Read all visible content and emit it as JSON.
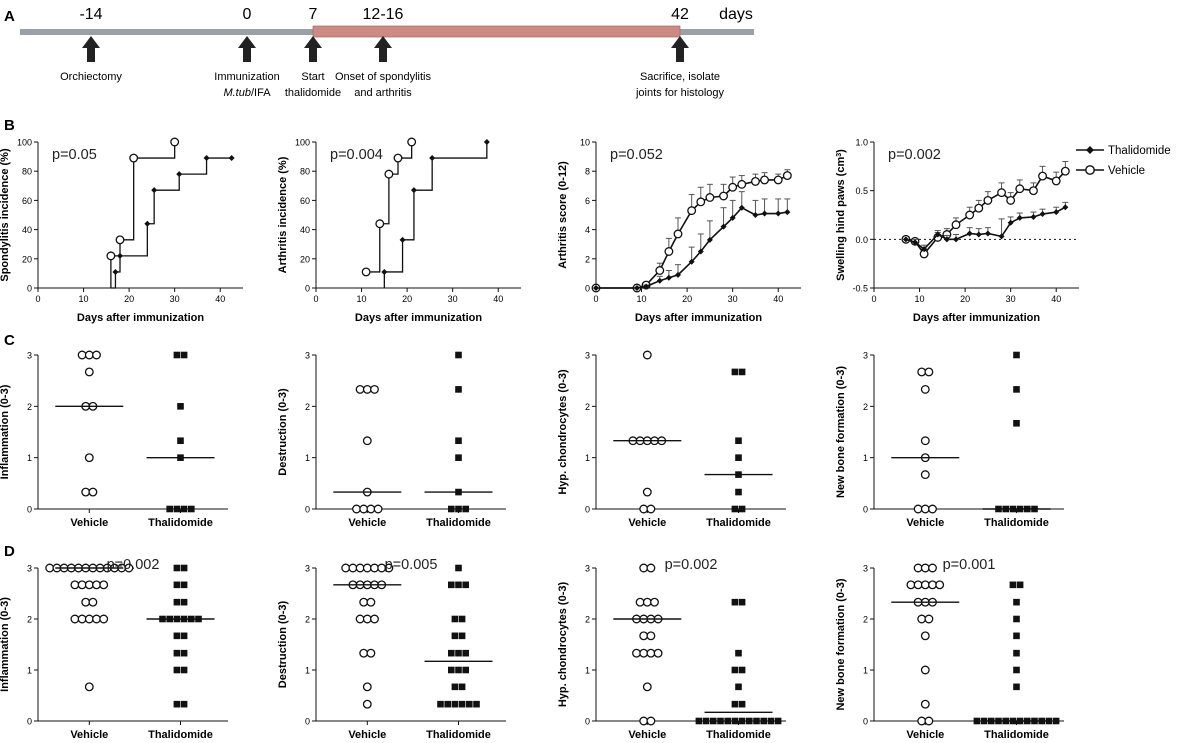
{
  "timeline": {
    "panel_label": "A",
    "unit": "days",
    "ticks": [
      {
        "label": "-14",
        "event": [
          "Orchiectomy"
        ]
      },
      {
        "label": "0",
        "event": [
          "Immunization",
          "M.tub/IFA"
        ]
      },
      {
        "label": "7",
        "event": [
          "Start",
          "thalidomide"
        ]
      },
      {
        "label": "12-16",
        "event": [
          "Onset of spondylitis",
          "and arthritis"
        ]
      },
      {
        "label": "42",
        "event": [
          "Sacrifice, isolate",
          "joints for histology"
        ]
      }
    ],
    "treatment_from": "7",
    "treatment_to": "42",
    "colors": {
      "axis": "#9aa0a8",
      "treatment": "#cc8a84",
      "arrow": "#222222"
    }
  },
  "legend": {
    "items": [
      {
        "series": "Thalidomide",
        "marker": "filled-diamond"
      },
      {
        "series": "Vehicle",
        "marker": "open-circle"
      }
    ]
  },
  "chart_data": [
    {
      "panel": "B",
      "type": "step",
      "title": "",
      "pvalue": "p=0.05",
      "xlabel": "Days after immunization",
      "ylabel": "Spondylitis incidence (%)",
      "xlim": [
        0,
        45
      ],
      "ylim": [
        0,
        100
      ],
      "xticks": [
        0,
        10,
        20,
        30,
        40
      ],
      "yticks": [
        0,
        20,
        40,
        60,
        80,
        100
      ],
      "series": [
        {
          "name": "Vehicle",
          "marker": "circle",
          "points": [
            [
              16,
              0
            ],
            [
              16,
              22
            ],
            [
              18,
              33
            ],
            [
              21,
              89
            ],
            [
              30,
              100
            ]
          ]
        },
        {
          "name": "Thalidomide",
          "marker": "diamond",
          "points": [
            [
              16,
              0
            ],
            [
              17,
              11
            ],
            [
              18,
              22
            ],
            [
              24,
              44
            ],
            [
              25.5,
              67
            ],
            [
              31,
              78
            ],
            [
              37,
              89
            ],
            [
              42.5,
              89
            ]
          ]
        }
      ]
    },
    {
      "panel": "B",
      "type": "step",
      "title": "",
      "pvalue": "p=0.004",
      "xlabel": "Days after immunization",
      "ylabel": "Arthritis incidence (%)",
      "xlim": [
        0,
        45
      ],
      "ylim": [
        0,
        100
      ],
      "xticks": [
        0,
        10,
        20,
        30,
        40
      ],
      "yticks": [
        0,
        20,
        40,
        60,
        80,
        100
      ],
      "series": [
        {
          "name": "Vehicle",
          "marker": "circle",
          "points": [
            [
              11,
              11
            ],
            [
              14,
              44
            ],
            [
              16,
              78
            ],
            [
              18,
              89
            ],
            [
              21,
              100
            ]
          ]
        },
        {
          "name": "Thalidomide",
          "marker": "diamond",
          "points": [
            [
              15,
              0
            ],
            [
              15,
              11
            ],
            [
              19,
              33
            ],
            [
              21.5,
              67
            ],
            [
              25.5,
              89
            ],
            [
              37.5,
              100
            ]
          ]
        }
      ]
    },
    {
      "panel": "B",
      "type": "line",
      "title": "",
      "pvalue": "p=0.052",
      "xlabel": "Days after immunization",
      "ylabel": "Arthritis score (0-12)",
      "xlim": [
        0,
        45
      ],
      "ylim": [
        0,
        10
      ],
      "xticks": [
        0,
        10,
        20,
        30,
        40
      ],
      "yticks": [
        0,
        2,
        4,
        6,
        8,
        10
      ],
      "series": [
        {
          "name": "Vehicle",
          "marker": "circle",
          "x": [
            0,
            9,
            11,
            14,
            16,
            18,
            21,
            23,
            25,
            28,
            30,
            32,
            35,
            37,
            40,
            42
          ],
          "y": [
            0,
            0,
            0.2,
            1.2,
            2.5,
            3.7,
            5.3,
            5.9,
            6.2,
            6.3,
            6.9,
            7.1,
            7.3,
            7.4,
            7.4,
            7.7
          ],
          "err": [
            0,
            0,
            0.2,
            0.5,
            0.9,
            1.1,
            1.1,
            1.0,
            0.9,
            0.8,
            0.7,
            0.6,
            0.5,
            0.5,
            0.4,
            0.4
          ]
        },
        {
          "name": "Thalidomide",
          "marker": "diamond",
          "x": [
            0,
            9,
            11,
            14,
            16,
            18,
            21,
            23,
            25,
            28,
            30,
            32,
            35,
            37,
            40,
            42
          ],
          "y": [
            0,
            0,
            0.1,
            0.5,
            0.7,
            0.9,
            1.8,
            2.5,
            3.3,
            4.2,
            4.8,
            5.5,
            5.0,
            5.1,
            5.1,
            5.2
          ],
          "err": [
            0,
            0,
            0.1,
            0.3,
            0.5,
            0.7,
            1.0,
            1.2,
            1.3,
            1.3,
            1.2,
            1.1,
            1.0,
            1.0,
            1.0,
            0.9
          ]
        }
      ]
    },
    {
      "panel": "B",
      "type": "line",
      "title": "",
      "pvalue": "p=0.002",
      "xlabel": "Days after immunization",
      "ylabel": "Swelling hind paws (cm³)",
      "xlim": [
        0,
        45
      ],
      "ylim": [
        -0.5,
        1.0
      ],
      "xticks": [
        0,
        10,
        20,
        30,
        40
      ],
      "yticks": [
        -0.5,
        0.0,
        0.5,
        1.0
      ],
      "reference_line": 0,
      "series": [
        {
          "name": "Vehicle",
          "marker": "circle",
          "x": [
            7,
            9,
            11,
            14,
            16,
            18,
            21,
            23,
            25,
            28,
            30,
            32,
            35,
            37,
            40,
            42
          ],
          "y": [
            0,
            -0.02,
            -0.15,
            0.02,
            0.05,
            0.15,
            0.25,
            0.32,
            0.4,
            0.48,
            0.4,
            0.52,
            0.5,
            0.65,
            0.6,
            0.7
          ],
          "err": [
            0,
            0.03,
            0.05,
            0.05,
            0.06,
            0.07,
            0.08,
            0.08,
            0.09,
            0.1,
            0.08,
            0.09,
            0.08,
            0.1,
            0.09,
            0.1
          ]
        },
        {
          "name": "Thalidomide",
          "marker": "diamond",
          "x": [
            7,
            9,
            11,
            14,
            16,
            18,
            21,
            23,
            25,
            28,
            30,
            32,
            35,
            37,
            40,
            42
          ],
          "y": [
            0,
            -0.03,
            -0.1,
            0.05,
            0.0,
            0.0,
            0.06,
            0.05,
            0.06,
            0.03,
            0.17,
            0.22,
            0.23,
            0.26,
            0.28,
            0.33
          ],
          "err": [
            0,
            0.03,
            0.04,
            0.04,
            0.04,
            0.05,
            0.06,
            0.06,
            0.06,
            0.18,
            0.06,
            0.05,
            0.05,
            0.05,
            0.05,
            0.05
          ]
        }
      ]
    },
    {
      "panel": "C",
      "type": "scatter",
      "pvalue": "",
      "ylabel": "Inflammation (0-3)",
      "ylim": [
        0,
        3
      ],
      "yticks": [
        0,
        1,
        2,
        3
      ],
      "categories": [
        "Vehicle",
        "Thalidomide"
      ],
      "groups": [
        {
          "name": "Vehicle",
          "marker": "circle",
          "median": 2,
          "values": [
            3,
            3,
            3,
            2.67,
            2,
            2,
            1,
            0.33,
            0.33
          ]
        },
        {
          "name": "Thalidomide",
          "marker": "square",
          "median": 1,
          "values": [
            3,
            3,
            2,
            1.33,
            1,
            0,
            0,
            0,
            0
          ]
        }
      ]
    },
    {
      "panel": "C",
      "type": "scatter",
      "pvalue": "",
      "ylabel": "Destruction (0-3)",
      "ylim": [
        0,
        3
      ],
      "yticks": [
        0,
        1,
        2,
        3
      ],
      "categories": [
        "Vehicle",
        "Thalidomide"
      ],
      "groups": [
        {
          "name": "Vehicle",
          "marker": "circle",
          "median": 0.33,
          "values": [
            2.33,
            2.33,
            2.33,
            1.33,
            0.33,
            0,
            0,
            0,
            0
          ]
        },
        {
          "name": "Thalidomide",
          "marker": "square",
          "median": 0.33,
          "values": [
            3,
            2.33,
            1.33,
            1,
            0.33,
            0,
            0,
            0
          ]
        }
      ]
    },
    {
      "panel": "C",
      "type": "scatter",
      "pvalue": "",
      "ylabel": "Hyp. chondrocytes (0-3)",
      "ylim": [
        0,
        3
      ],
      "yticks": [
        0,
        1,
        2,
        3
      ],
      "categories": [
        "Vehicle",
        "Thalidomide"
      ],
      "groups": [
        {
          "name": "Vehicle",
          "marker": "circle",
          "median": 1.33,
          "values": [
            3,
            1.33,
            1.33,
            1.33,
            1.33,
            1.33,
            0.33,
            0,
            0
          ]
        },
        {
          "name": "Thalidomide",
          "marker": "square",
          "median": 0.67,
          "values": [
            2.67,
            2.67,
            1.33,
            1,
            0.67,
            0.33,
            0,
            0
          ]
        }
      ]
    },
    {
      "panel": "C",
      "type": "scatter",
      "pvalue": "",
      "ylabel": "New bone formation (0-3)",
      "ylim": [
        0,
        3
      ],
      "yticks": [
        0,
        1,
        2,
        3
      ],
      "categories": [
        "Vehicle",
        "Thalidomide"
      ],
      "groups": [
        {
          "name": "Vehicle",
          "marker": "circle",
          "median": 1,
          "values": [
            2.67,
            2.67,
            2.33,
            1.33,
            1,
            0.67,
            0,
            0,
            0
          ]
        },
        {
          "name": "Thalidomide",
          "marker": "square",
          "median": 0,
          "values": [
            3,
            2.33,
            1.67,
            0,
            0,
            0,
            0,
            0,
            0
          ]
        }
      ]
    },
    {
      "panel": "D",
      "type": "scatter",
      "pvalue": "p=0.002",
      "ylabel": "Inflammation (0-3)",
      "ylim": [
        0,
        3
      ],
      "yticks": [
        0,
        1,
        2,
        3
      ],
      "categories": [
        "Vehicle",
        "Thalidomide"
      ],
      "groups": [
        {
          "name": "Vehicle",
          "marker": "circle",
          "median": 3,
          "values": [
            3,
            3,
            3,
            3,
            3,
            3,
            3,
            3,
            3,
            3,
            3,
            3,
            2.67,
            2.67,
            2.67,
            2.67,
            2.67,
            2.33,
            2.33,
            2,
            2,
            2,
            2,
            2,
            0.67
          ]
        },
        {
          "name": "Thalidomide",
          "marker": "square",
          "median": 2,
          "values": [
            3,
            3,
            2.67,
            2.67,
            2.33,
            2.33,
            2,
            2,
            2,
            2,
            2,
            2,
            1.67,
            1.67,
            1.33,
            1.33,
            1,
            1,
            0.33,
            0.33
          ]
        }
      ]
    },
    {
      "panel": "D",
      "type": "scatter",
      "pvalue": "p=0.005",
      "ylabel": "Destruction (0-3)",
      "ylim": [
        0,
        3
      ],
      "yticks": [
        0,
        1,
        2,
        3
      ],
      "categories": [
        "Vehicle",
        "Thalidomide"
      ],
      "groups": [
        {
          "name": "Vehicle",
          "marker": "circle",
          "median": 2.67,
          "values": [
            3,
            3,
            3,
            3,
            3,
            3,
            3,
            2.67,
            2.67,
            2.67,
            2.67,
            2.67,
            2.33,
            2.33,
            2,
            2,
            2,
            1.33,
            1.33,
            0.67,
            0.33
          ]
        },
        {
          "name": "Thalidomide",
          "marker": "square",
          "median": 1.17,
          "values": [
            3,
            2.67,
            2.67,
            2.67,
            2,
            2,
            1.67,
            1.67,
            1.33,
            1.33,
            1.33,
            1,
            1,
            1,
            0.67,
            0.67,
            0.33,
            0.33,
            0.33,
            0.33,
            0.33,
            0.33
          ]
        }
      ]
    },
    {
      "panel": "D",
      "type": "scatter",
      "pvalue": "p=0.002",
      "ylabel": "Hyp. chondrocytes (0-3)",
      "ylim": [
        0,
        3
      ],
      "yticks": [
        0,
        1,
        2,
        3
      ],
      "categories": [
        "Vehicle",
        "Thalidomide"
      ],
      "groups": [
        {
          "name": "Vehicle",
          "marker": "circle",
          "median": 2,
          "values": [
            3,
            3,
            2.33,
            2.33,
            2.33,
            2,
            2,
            2,
            2,
            1.67,
            1.67,
            1.33,
            1.33,
            1.33,
            1.33,
            0.67,
            0,
            0
          ]
        },
        {
          "name": "Thalidomide",
          "marker": "square",
          "median": 0.17,
          "values": [
            2.33,
            2.33,
            1.33,
            1,
            1,
            0.67,
            0.33,
            0.33,
            0,
            0,
            0,
            0,
            0,
            0,
            0,
            0,
            0,
            0,
            0,
            0
          ]
        }
      ]
    },
    {
      "panel": "D",
      "type": "scatter",
      "pvalue": "p=0.001",
      "ylabel": "New bone formation (0-3)",
      "ylim": [
        0,
        3
      ],
      "yticks": [
        0,
        1,
        2,
        3
      ],
      "categories": [
        "Vehicle",
        "Thalidomide"
      ],
      "groups": [
        {
          "name": "Vehicle",
          "marker": "circle",
          "median": 2.33,
          "values": [
            3,
            3,
            3,
            2.67,
            2.67,
            2.67,
            2.67,
            2.67,
            2.33,
            2.33,
            2.33,
            2,
            2,
            1.67,
            1,
            0.33,
            0,
            0
          ]
        },
        {
          "name": "Thalidomide",
          "marker": "square",
          "median": 0,
          "values": [
            2.67,
            2.67,
            2.33,
            2,
            1.67,
            1.33,
            1,
            0.67,
            0,
            0,
            0,
            0,
            0,
            0,
            0,
            0,
            0,
            0,
            0,
            0
          ]
        }
      ]
    }
  ]
}
